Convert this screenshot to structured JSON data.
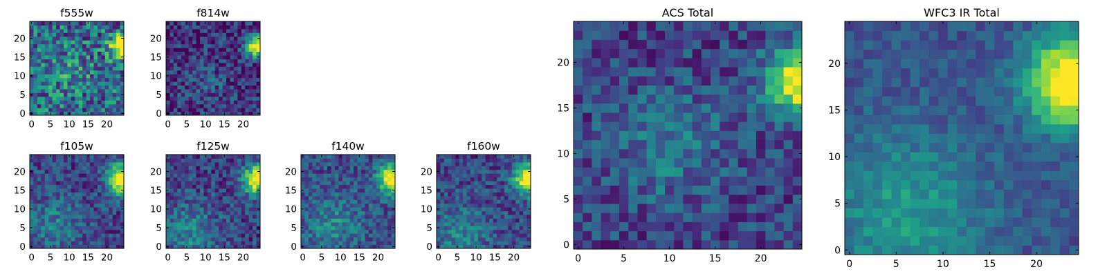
{
  "figure": {
    "colormap": "viridis",
    "colormap_stops": [
      "#440154",
      "#482878",
      "#3e4989",
      "#31688e",
      "#26828e",
      "#1f9e89",
      "#35b779",
      "#6ece58",
      "#b5de2b",
      "#fde725"
    ]
  },
  "chart_data": [
    {
      "type": "heatmap",
      "title": "f555w",
      "xlabel": "",
      "ylabel": "",
      "xlim": [
        -0.5,
        24.5
      ],
      "ylim": [
        -0.5,
        24.5
      ],
      "xticks": [
        0,
        5,
        10,
        15,
        20
      ],
      "yticks": [
        0,
        5,
        10,
        15,
        20
      ],
      "grid_size": 25,
      "noise": 0.62,
      "floor": 0.36,
      "seed": 3,
      "bright_source": {
        "x": 24,
        "y": 18,
        "peak": 0.95,
        "sigma": 2.0
      },
      "diffuse_glow": {
        "x": 10,
        "y": 11,
        "peak": 0.12,
        "sigma": 4.0
      }
    },
    {
      "type": "heatmap",
      "title": "f814w",
      "xlabel": "",
      "ylabel": "",
      "xlim": [
        -0.5,
        24.5
      ],
      "ylim": [
        -0.5,
        24.5
      ],
      "xticks": [
        0,
        5,
        10,
        15,
        20
      ],
      "yticks": [
        0,
        5,
        10,
        15,
        20
      ],
      "grid_size": 25,
      "noise": 0.42,
      "floor": 0.14,
      "seed": 7,
      "bright_source": {
        "x": 24,
        "y": 18,
        "peak": 0.95,
        "sigma": 2.2
      },
      "diffuse_glow": {
        "x": 10,
        "y": 8,
        "peak": 0.15,
        "sigma": 4.5
      }
    },
    {
      "type": "heatmap",
      "title": "f105w",
      "xlabel": "",
      "ylabel": "",
      "xlim": [
        -0.5,
        24.5
      ],
      "ylim": [
        -0.5,
        24.5
      ],
      "xticks": [
        0,
        5,
        10,
        15,
        20
      ],
      "yticks": [
        0,
        5,
        10,
        15,
        20
      ],
      "grid_size": 25,
      "noise": 0.36,
      "floor": 0.2,
      "seed": 11,
      "bright_source": {
        "x": 24,
        "y": 18,
        "peak": 0.9,
        "sigma": 2.8
      },
      "diffuse_glow": {
        "x": 6,
        "y": 6,
        "peak": 0.22,
        "sigma": 5.5
      }
    },
    {
      "type": "heatmap",
      "title": "f125w",
      "xlabel": "",
      "ylabel": "",
      "xlim": [
        -0.5,
        24.5
      ],
      "ylim": [
        -0.5,
        24.5
      ],
      "xticks": [
        0,
        5,
        10,
        15,
        20
      ],
      "yticks": [
        0,
        5,
        10,
        15,
        20
      ],
      "grid_size": 25,
      "noise": 0.38,
      "floor": 0.2,
      "seed": 19,
      "bright_source": {
        "x": 24,
        "y": 18,
        "peak": 0.9,
        "sigma": 2.8
      },
      "diffuse_glow": {
        "x": 6,
        "y": 4,
        "peak": 0.25,
        "sigma": 5.5
      }
    },
    {
      "type": "heatmap",
      "title": "f140w",
      "xlabel": "",
      "ylabel": "",
      "xlim": [
        -0.5,
        24.5
      ],
      "ylim": [
        -0.5,
        24.5
      ],
      "xticks": [
        0,
        5,
        10,
        15,
        20
      ],
      "yticks": [
        0,
        5,
        10,
        15,
        20
      ],
      "grid_size": 25,
      "noise": 0.36,
      "floor": 0.24,
      "seed": 23,
      "bright_source": {
        "x": 24,
        "y": 18,
        "peak": 0.88,
        "sigma": 2.8
      },
      "diffuse_glow": {
        "x": 8,
        "y": 6,
        "peak": 0.22,
        "sigma": 5.5
      }
    },
    {
      "type": "heatmap",
      "title": "f160w",
      "xlabel": "",
      "ylabel": "",
      "xlim": [
        -0.5,
        24.5
      ],
      "ylim": [
        -0.5,
        24.5
      ],
      "xticks": [
        0,
        5,
        10,
        15,
        20
      ],
      "yticks": [
        0,
        5,
        10,
        15,
        20
      ],
      "grid_size": 25,
      "noise": 0.36,
      "floor": 0.22,
      "seed": 29,
      "bright_source": {
        "x": 24,
        "y": 18,
        "peak": 0.9,
        "sigma": 2.8
      },
      "diffuse_glow": {
        "x": 6,
        "y": 3,
        "peak": 0.22,
        "sigma": 5.5
      }
    },
    {
      "type": "heatmap",
      "title": "ACS Total",
      "xlabel": "",
      "ylabel": "",
      "xlim": [
        -0.5,
        24.5
      ],
      "ylim": [
        -0.5,
        24.5
      ],
      "xticks": [
        0,
        5,
        10,
        15,
        20
      ],
      "yticks": [
        0,
        5,
        10,
        15,
        20
      ],
      "grid_size": 25,
      "noise": 0.36,
      "floor": 0.2,
      "seed": 37,
      "bright_source": {
        "x": 24,
        "y": 18,
        "peak": 0.92,
        "sigma": 2.4
      },
      "diffuse_glow": {
        "x": 10,
        "y": 11,
        "peak": 0.2,
        "sigma": 4.5
      }
    },
    {
      "type": "heatmap",
      "title": "WFC3 IR Total",
      "xlabel": "",
      "ylabel": "",
      "xlim": [
        -0.5,
        24.5
      ],
      "ylim": [
        -0.5,
        24.5
      ],
      "xticks": [
        0,
        5,
        10,
        15,
        20
      ],
      "yticks": [
        0,
        5,
        10,
        15,
        20
      ],
      "grid_size": 25,
      "noise": 0.2,
      "floor": 0.26,
      "seed": 41,
      "bright_source": {
        "x": 24,
        "y": 18,
        "peak": 0.92,
        "sigma": 3.4
      },
      "diffuse_glow": {
        "x": 6,
        "y": 4,
        "peak": 0.28,
        "sigma": 6.0
      }
    }
  ]
}
